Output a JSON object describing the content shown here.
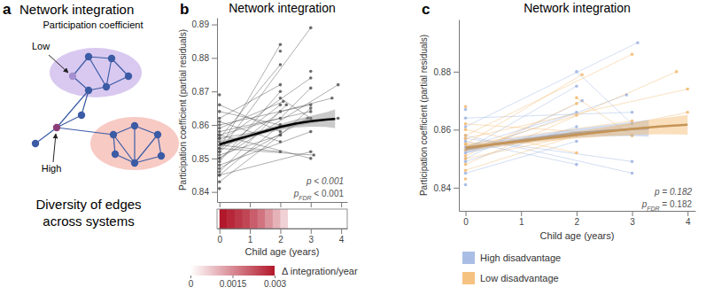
{
  "diagram": {
    "panel": "a",
    "title": "Network integration",
    "subtitle": "Participation coefficient",
    "low_label": "Low",
    "high_label": "High",
    "caption_lines": [
      "Diversity of edges",
      "across systems"
    ]
  },
  "chart_data": [
    {
      "type": "line",
      "panel": "b",
      "title": "Network integration",
      "x_label": "Child age (years)",
      "y_label": "Participation coefficient (partial residuals)",
      "xlim": [
        -0.08,
        4.2
      ],
      "xticks": [
        0,
        1,
        2,
        3,
        4
      ],
      "ylim": [
        0.837,
        0.892
      ],
      "yticks": [
        0.84,
        0.85,
        0.86,
        0.87,
        0.88,
        0.89
      ],
      "color": "#555555",
      "subjects": [
        {
          "x": [
            0,
            2
          ],
          "values": [
            0.852,
            0.866
          ]
        },
        {
          "x": [
            0,
            2,
            3
          ],
          "values": [
            0.857,
            0.862,
            0.871
          ]
        },
        {
          "x": [
            0,
            3
          ],
          "values": [
            0.848,
            0.858
          ]
        },
        {
          "x": [
            0,
            2
          ],
          "values": [
            0.861,
            0.855
          ]
        },
        {
          "x": [
            0,
            2,
            3.7
          ],
          "values": [
            0.85,
            0.864,
            0.868
          ]
        },
        {
          "x": [
            0,
            3
          ],
          "values": [
            0.855,
            0.874
          ]
        },
        {
          "x": [
            0,
            2
          ],
          "values": [
            0.845,
            0.86
          ]
        },
        {
          "x": [
            0,
            2.1
          ],
          "values": [
            0.859,
            0.867
          ]
        },
        {
          "x": [
            0,
            3.1
          ],
          "values": [
            0.853,
            0.851
          ]
        },
        {
          "x": [
            0,
            2
          ],
          "values": [
            0.862,
            0.872
          ]
        },
        {
          "x": [
            0,
            2,
            3
          ],
          "values": [
            0.851,
            0.857,
            0.865
          ]
        },
        {
          "x": [
            0,
            3.9
          ],
          "values": [
            0.856,
            0.862
          ]
        },
        {
          "x": [
            0,
            2
          ],
          "values": [
            0.849,
            0.87
          ]
        },
        {
          "x": [
            0,
            3
          ],
          "values": [
            0.858,
            0.864
          ]
        },
        {
          "x": [
            0,
            2
          ],
          "values": [
            0.854,
            0.852
          ]
        },
        {
          "x": [
            0,
            2.9
          ],
          "values": [
            0.847,
            0.862
          ]
        },
        {
          "x": [
            0,
            2
          ],
          "values": [
            0.864,
            0.86
          ]
        },
        {
          "x": [
            0,
            3
          ],
          "values": [
            0.852,
            0.889
          ]
        },
        {
          "x": [
            0,
            2
          ],
          "values": [
            0.856,
            0.878
          ]
        },
        {
          "x": [
            0,
            3.9
          ],
          "values": [
            0.85,
            0.872
          ]
        },
        {
          "x": [
            0,
            2
          ],
          "values": [
            0.843,
            0.857
          ]
        },
        {
          "x": [
            0,
            3
          ],
          "values": [
            0.86,
            0.866
          ]
        },
        {
          "x": [
            0,
            2
          ],
          "values": [
            0.866,
            0.858
          ]
        },
        {
          "x": [
            2,
            3
          ],
          "values": [
            0.868,
            0.862
          ]
        },
        {
          "x": [
            0,
            2.2
          ],
          "values": [
            0.846,
            0.866
          ]
        },
        {
          "x": [
            0,
            3
          ],
          "values": [
            0.857,
            0.85
          ]
        },
        {
          "x": [
            0
          ],
          "values": [
            0.841
          ]
        },
        {
          "x": [
            0
          ],
          "values": [
            0.869
          ]
        },
        {
          "x": [
            2
          ],
          "values": [
            0.882
          ]
        },
        {
          "x": [
            3
          ],
          "values": [
            0.876
          ]
        },
        {
          "x": [
            0,
            2
          ],
          "values": [
            0.853,
            0.884
          ]
        },
        {
          "x": [
            0,
            3
          ],
          "values": [
            0.845,
            0.852
          ]
        }
      ],
      "fit": {
        "x": [
          0,
          0.5,
          1,
          1.5,
          2,
          2.5,
          3,
          3.5,
          3.8
        ],
        "values": [
          0.8542,
          0.8555,
          0.8568,
          0.8581,
          0.8594,
          0.8604,
          0.8611,
          0.8616,
          0.8618
        ],
        "lower": [
          0.8532,
          0.8547,
          0.8561,
          0.8574,
          0.8585,
          0.8592,
          0.8595,
          0.8594,
          0.859
        ],
        "upper": [
          0.8552,
          0.8563,
          0.8575,
          0.8588,
          0.8603,
          0.8616,
          0.8627,
          0.8638,
          0.8646
        ]
      },
      "annotations": [
        {
          "text": "p < 0.001"
        },
        {
          "text": "p",
          "subscript": "FDR",
          "suffix": " < 0.001"
        }
      ],
      "derivative": {
        "edges": [
          0,
          0.25,
          0.5,
          0.75,
          1,
          1.25,
          1.5,
          1.75,
          2,
          2.25,
          2.5,
          2.75,
          3,
          3.25,
          3.5,
          3.75,
          4
        ],
        "values": [
          0.003,
          0.0028,
          0.0026,
          0.0024,
          0.0021,
          0.0018,
          0.0014,
          0.001,
          0.0006,
          0,
          0,
          0,
          0,
          0,
          0,
          0
        ],
        "color": "#b2182b"
      },
      "colorbar": {
        "label": "Δ integration/year",
        "range": [
          0,
          0.003
        ],
        "ticks": [
          0,
          0.0015,
          0.003
        ]
      }
    },
    {
      "type": "line",
      "panel": "c",
      "title": "Network integration",
      "x_label": "Child age (years)",
      "y_label": "Participation coefficient (partial residuals)",
      "xlim": [
        -0.12,
        4.14
      ],
      "xticks": [
        0,
        1,
        2,
        3,
        4
      ],
      "ylim": [
        0.832,
        0.898
      ],
      "yticks": [
        0.84,
        0.86,
        0.88
      ],
      "legend": "bottom",
      "series": [
        {
          "name": "High disadvantage",
          "color": "#9bb3e0",
          "subjects": [
            {
              "x": [
                0,
                2
              ],
              "values": [
                0.854,
                0.866
              ]
            },
            {
              "x": [
                0,
                3
              ],
              "values": [
                0.858,
                0.845
              ]
            },
            {
              "x": [
                0,
                2
              ],
              "values": [
                0.849,
                0.861
              ]
            },
            {
              "x": [
                0,
                3.1
              ],
              "values": [
                0.861,
                0.89
              ]
            },
            {
              "x": [
                0,
                2
              ],
              "values": [
                0.856,
                0.848
              ]
            },
            {
              "x": [
                0,
                2.9
              ],
              "values": [
                0.852,
                0.872
              ]
            },
            {
              "x": [
                0,
                2
              ],
              "values": [
                0.845,
                0.856
              ]
            },
            {
              "x": [
                0,
                3
              ],
              "values": [
                0.864,
                0.866
              ]
            },
            {
              "x": [
                0,
                2.1
              ],
              "values": [
                0.85,
                0.87
              ]
            },
            {
              "x": [
                0,
                3
              ],
              "values": [
                0.857,
                0.849
              ]
            },
            {
              "x": [
                0
              ],
              "values": [
                0.867
              ]
            },
            {
              "x": [
                0
              ],
              "values": [
                0.841
              ]
            },
            {
              "x": [
                2,
                3
              ],
              "values": [
                0.88,
                0.862
              ]
            },
            {
              "x": [
                0,
                2
              ],
              "values": [
                0.853,
                0.875
              ]
            }
          ],
          "fit": {
            "x": [
              0,
              0.5,
              1,
              1.5,
              2,
              2.5,
              3,
              3.3
            ],
            "values": [
              0.8532,
              0.8549,
              0.8564,
              0.8577,
              0.8588,
              0.8596,
              0.8602,
              0.8605
            ],
            "lower": [
              0.8518,
              0.8538,
              0.8553,
              0.8565,
              0.8573,
              0.8577,
              0.8578,
              0.8576
            ],
            "upper": [
              0.8546,
              0.856,
              0.8575,
              0.8589,
              0.8603,
              0.8615,
              0.8626,
              0.8634
            ]
          }
        },
        {
          "name": "Low disadvantage",
          "color": "#f4b76b",
          "subjects": [
            {
              "x": [
                0,
                2
              ],
              "values": [
                0.851,
                0.869
              ]
            },
            {
              "x": [
                0,
                3
              ],
              "values": [
                0.855,
                0.863
              ]
            },
            {
              "x": [
                0,
                4
              ],
              "values": [
                0.857,
                0.874
              ]
            },
            {
              "x": [
                0,
                2
              ],
              "values": [
                0.86,
                0.852
              ]
            },
            {
              "x": [
                0,
                3.8
              ],
              "values": [
                0.848,
                0.88
              ]
            },
            {
              "x": [
                0,
                2
              ],
              "values": [
                0.846,
                0.858
              ]
            },
            {
              "x": [
                0,
                3
              ],
              "values": [
                0.862,
                0.858
              ]
            },
            {
              "x": [
                0,
                2
              ],
              "values": [
                0.853,
                0.865
              ]
            },
            {
              "x": [
                0,
                4
              ],
              "values": [
                0.85,
                0.866
              ]
            },
            {
              "x": [
                0,
                3
              ],
              "values": [
                0.858,
                0.886
              ]
            },
            {
              "x": [
                0
              ],
              "values": [
                0.868
              ]
            },
            {
              "x": [
                0
              ],
              "values": [
                0.843
              ]
            },
            {
              "x": [
                2,
                3
              ],
              "values": [
                0.871,
                0.858
              ]
            },
            {
              "x": [
                0,
                2.1
              ],
              "values": [
                0.855,
                0.879
              ]
            }
          ],
          "fit": {
            "x": [
              0,
              0.5,
              1,
              1.5,
              2,
              2.5,
              3,
              3.5,
              4
            ],
            "values": [
              0.8538,
              0.8549,
              0.856,
              0.8571,
              0.8582,
              0.8593,
              0.8603,
              0.8611,
              0.8617
            ],
            "lower": [
              0.8526,
              0.854,
              0.8551,
              0.8561,
              0.857,
              0.8577,
              0.8582,
              0.8584,
              0.8583
            ],
            "upper": [
              0.855,
              0.8558,
              0.8569,
              0.8581,
              0.8594,
              0.8609,
              0.8624,
              0.8638,
              0.8651
            ]
          }
        }
      ],
      "annotations": [
        {
          "text": "p = 0.182"
        },
        {
          "text": "p",
          "subscript": "FDR",
          "suffix": " = 0.182"
        }
      ]
    }
  ]
}
